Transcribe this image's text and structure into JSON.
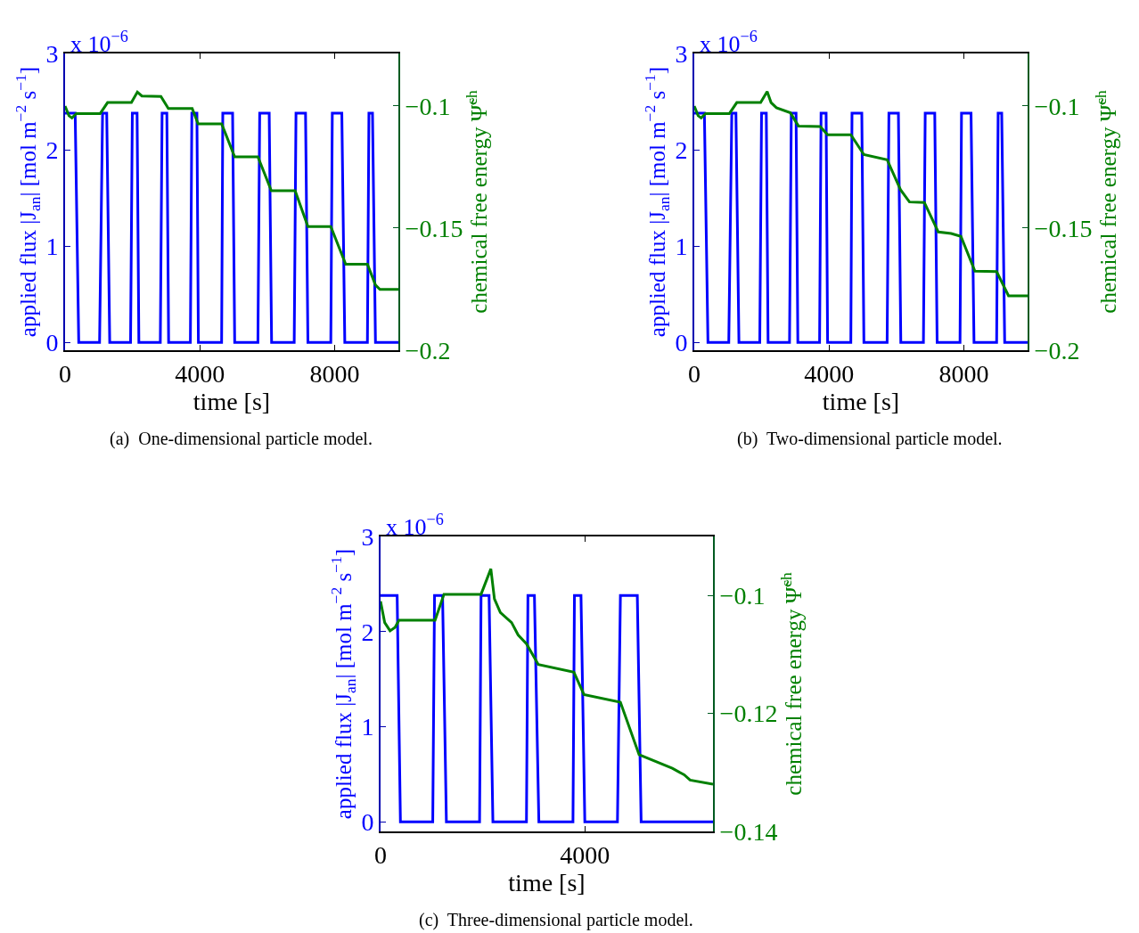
{
  "chart_data": [
    {
      "type": "line",
      "title": "(a)  One-dimensional particle model.",
      "xlabel": "time [s]",
      "ylabel": "applied flux |J$_{an}$| [mol m$^{−2}$ s$^{−1}$]",
      "y2label": "chemical free energy Ψ̃$^{ch}$",
      "annotations": [
        "x 10$^{−6}$"
      ],
      "xlim": [
        0,
        9890
      ],
      "xticks": [
        0,
        4000,
        8000
      ],
      "ylim": [
        -0.08,
        3
      ],
      "yticks": [
        0,
        1,
        2,
        3
      ],
      "y2lim": [
        -0.2,
        -0.0785
      ],
      "y2ticks": [
        {
          "value": -0.1,
          "label": "−0.1"
        },
        {
          "value": -0.15,
          "label": "−0.15"
        },
        {
          "value": -0.2,
          "label": "−0.2"
        }
      ],
      "series": [
        {
          "color": "#0000ff",
          "x": [
            0,
            300,
            406,
            1024,
            1113,
            1236,
            1325,
            1943,
            1996,
            2137,
            2190,
            2826,
            2879,
            3020,
            3073,
            3718,
            3762,
            3912,
            3956,
            4645,
            4680,
            4971,
            5033,
            5722,
            5775,
            6057,
            6128,
            6799,
            6852,
            7135,
            7206,
            7885,
            7929,
            8212,
            8300,
            8971,
            9016,
            9122,
            9210,
            9890
          ],
          "values": [
            2.38,
            2.38,
            0,
            0,
            2.38,
            2.38,
            0,
            0,
            2.38,
            2.38,
            0,
            0,
            2.38,
            2.38,
            0,
            0,
            2.38,
            2.38,
            0,
            0,
            2.38,
            2.38,
            0,
            0,
            2.38,
            2.38,
            0,
            0,
            2.38,
            2.38,
            0,
            0,
            2.38,
            2.38,
            0,
            0,
            2.38,
            2.38,
            0,
            0
          ]
        },
        {
          "color": "#008000",
          "axis": "y2",
          "x": [
            0,
            115,
            203,
            336,
            1042,
            1262,
            1969,
            2146,
            2278,
            2844,
            3065,
            3772,
            3948,
            4645,
            5033,
            5722,
            6120,
            6826,
            7206,
            7885,
            8327,
            8971,
            9210,
            9343,
            9890
          ],
          "values": [
            -0.1,
            -0.104,
            -0.1049,
            -0.1031,
            -0.1031,
            -0.0986,
            -0.0986,
            -0.0943,
            -0.0959,
            -0.0961,
            -0.101,
            -0.101,
            -0.1073,
            -0.1073,
            -0.1208,
            -0.1208,
            -0.1347,
            -0.1347,
            -0.1494,
            -0.1494,
            -0.1648,
            -0.1648,
            -0.1733,
            -0.1751,
            -0.1751
          ]
        }
      ]
    },
    {
      "type": "line",
      "title": "(b)  Two-dimensional particle model.",
      "xlabel": "time [s]",
      "ylabel": "applied flux |J$_{an}$| [mol m$^{−2}$ s$^{−1}$]",
      "y2label": "chemical free energy Ψ̃$^{ch}$",
      "annotations": [
        "x 10$^{−6}$"
      ],
      "xlim": [
        0,
        9890
      ],
      "xticks": [
        0,
        4000,
        8000
      ],
      "ylim": [
        -0.08,
        3
      ],
      "yticks": [
        0,
        1,
        2,
        3
      ],
      "y2lim": [
        -0.2,
        -0.0785
      ],
      "y2ticks": [
        {
          "value": -0.1,
          "label": "−0.1"
        },
        {
          "value": -0.15,
          "label": "−0.15"
        },
        {
          "value": -0.2,
          "label": "−0.2"
        }
      ],
      "series": [
        {
          "color": "#0000ff",
          "x": [
            0,
            300,
            406,
            1024,
            1113,
            1236,
            1325,
            1943,
            1996,
            2137,
            2190,
            2826,
            2879,
            3020,
            3073,
            3718,
            3762,
            3912,
            3956,
            4645,
            4680,
            4971,
            5033,
            5722,
            5775,
            6057,
            6128,
            6799,
            6852,
            7135,
            7206,
            7885,
            7929,
            8212,
            8300,
            8971,
            9016,
            9122,
            9210,
            9890
          ],
          "values": [
            2.38,
            2.38,
            0,
            0,
            2.38,
            2.38,
            0,
            0,
            2.38,
            2.38,
            0,
            0,
            2.38,
            2.38,
            0,
            0,
            2.38,
            2.38,
            0,
            0,
            2.38,
            2.38,
            0,
            0,
            2.38,
            2.38,
            0,
            0,
            2.38,
            2.38,
            0,
            0,
            2.38,
            2.38,
            0,
            0,
            2.38,
            2.38,
            0,
            0
          ]
        },
        {
          "color": "#008000",
          "axis": "y2",
          "x": [
            0,
            115,
            203,
            336,
            1042,
            1262,
            1969,
            2163,
            2278,
            2437,
            2852,
            3091,
            3736,
            3956,
            4645,
            5033,
            5722,
            6120,
            6385,
            6826,
            7241,
            7621,
            7912,
            8327,
            8971,
            9325,
            9890
          ],
          "values": [
            -0.1,
            -0.104,
            -0.1049,
            -0.1031,
            -0.1031,
            -0.0986,
            -0.0986,
            -0.0941,
            -0.0986,
            -0.1007,
            -0.1028,
            -0.1082,
            -0.1084,
            -0.1118,
            -0.1118,
            -0.1199,
            -0.122,
            -0.1343,
            -0.1393,
            -0.1395,
            -0.1516,
            -0.1522,
            -0.1534,
            -0.1676,
            -0.1678,
            -0.1777,
            -0.1777
          ]
        }
      ]
    },
    {
      "type": "line",
      "title": "(c)  Three-dimensional particle model.",
      "xlabel": "time [s]",
      "ylabel": "applied flux |J$_{an}$| [mol m$^{−2}$ s$^{−1}$]",
      "y2label": "chemical free energy Ψ̃$^{ch}$",
      "annotations": [
        "x 10$^{−6}$"
      ],
      "xlim": [
        0,
        6510
      ],
      "xticks": [
        0,
        4000
      ],
      "ylim": [
        -0.1,
        3
      ],
      "yticks": [
        0,
        1,
        2,
        3
      ],
      "y2lim": [
        -0.14,
        -0.09
      ],
      "y2ticks": [
        {
          "value": -0.1,
          "label": "−0.1"
        },
        {
          "value": -0.12,
          "label": "−0.12"
        },
        {
          "value": -0.14,
          "label": "−0.14"
        }
      ],
      "series": [
        {
          "color": "#0000ff",
          "x": [
            0,
            325,
            389,
            1022,
            1057,
            1214,
            1289,
            1939,
            1968,
            2125,
            2200,
            2857,
            2886,
            3013,
            3100,
            3768,
            3797,
            3925,
            4000,
            4639,
            4697,
            5028,
            5103,
            6510
          ],
          "values": [
            2.38,
            2.38,
            0,
            0,
            2.38,
            2.38,
            0,
            0,
            2.38,
            2.38,
            0,
            0,
            2.38,
            2.38,
            0,
            0,
            2.38,
            2.38,
            0,
            0,
            2.38,
            2.38,
            0,
            0
          ]
        },
        {
          "color": "#008000",
          "axis": "y2",
          "x": [
            0,
            81,
            186,
            285,
            360,
            1068,
            1242,
            1968,
            2160,
            2230,
            2346,
            2566,
            2694,
            2857,
            3089,
            3786,
            3983,
            4697,
            5063,
            5713,
            5946,
            6062,
            6510
          ],
          "values": [
            -0.101,
            -0.1046,
            -0.106,
            -0.1054,
            -0.1042,
            -0.1042,
            -0.0998,
            -0.0998,
            -0.0955,
            -0.1006,
            -0.1029,
            -0.1046,
            -0.1067,
            -0.1082,
            -0.1117,
            -0.113,
            -0.1168,
            -0.1181,
            -0.127,
            -0.1293,
            -0.1304,
            -0.1313,
            -0.132
          ]
        }
      ]
    }
  ]
}
